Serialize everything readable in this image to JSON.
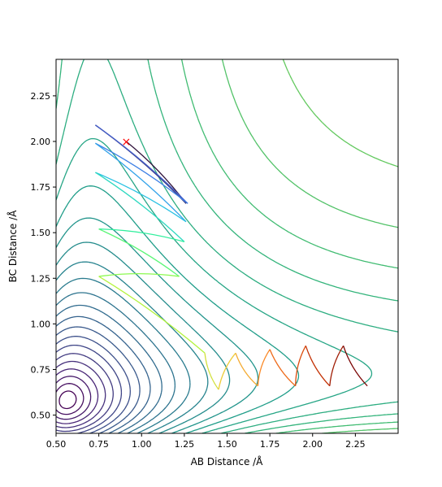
{
  "chart_data": {
    "type": "contour",
    "title": "",
    "xlabel": "AB Distance /Å",
    "ylabel": "BC Distance /Å",
    "xlim": [
      0.5,
      2.5
    ],
    "ylim": [
      0.4,
      2.45
    ],
    "xticks": [
      "0.50",
      "0.75",
      "1.00",
      "1.25",
      "1.50",
      "1.75",
      "2.00",
      "2.25"
    ],
    "xtick_values": [
      0.5,
      0.75,
      1.0,
      1.25,
      1.5,
      1.75,
      2.0,
      2.25
    ],
    "yticks": [
      "0.50",
      "0.75",
      "1.00",
      "1.25",
      "1.50",
      "1.75",
      "2.00",
      "2.25"
    ],
    "ytick_values": [
      0.5,
      0.75,
      1.0,
      1.25,
      1.5,
      1.75,
      2.0,
      2.25
    ],
    "colormap": "viridis",
    "contour_levels": 30,
    "start_marker": {
      "x": 0.91,
      "y": 2.0,
      "symbol": "×",
      "color": "#ff0000"
    },
    "trajectory_colormap": "turbo",
    "trajectory": [
      [
        0.91,
        2.0
      ],
      [
        1.26,
        1.66
      ],
      [
        0.73,
        2.09
      ],
      [
        1.27,
        1.66
      ],
      [
        0.73,
        1.99
      ],
      [
        1.26,
        1.56
      ],
      [
        0.73,
        1.83
      ],
      [
        1.25,
        1.45
      ],
      [
        0.75,
        1.52
      ],
      [
        1.22,
        1.26
      ],
      [
        0.75,
        1.26
      ],
      [
        1.37,
        0.84
      ],
      [
        1.45,
        0.64
      ],
      [
        1.55,
        0.84
      ],
      [
        1.68,
        0.66
      ],
      [
        1.75,
        0.86
      ],
      [
        1.9,
        0.66
      ],
      [
        1.96,
        0.88
      ],
      [
        2.1,
        0.66
      ],
      [
        2.18,
        0.88
      ],
      [
        2.32,
        0.66
      ]
    ]
  }
}
